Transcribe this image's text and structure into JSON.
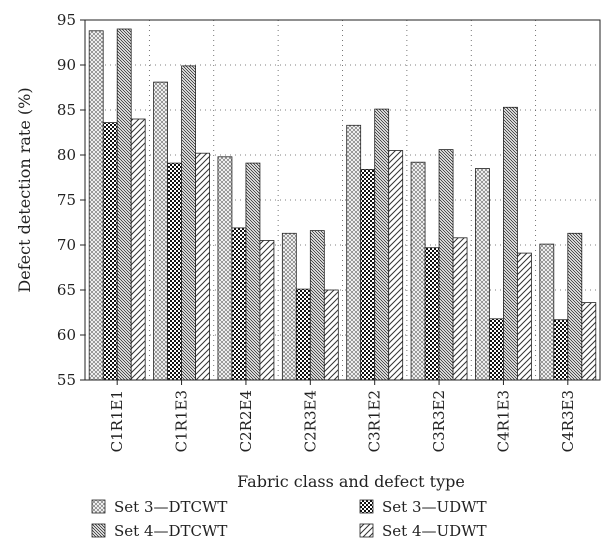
{
  "chart_data": {
    "type": "bar",
    "title": "",
    "xlabel": "Fabric class and defect type",
    "ylabel": "Defect detection rate (%)",
    "ylim": [
      55,
      95
    ],
    "yticks": [
      55,
      60,
      65,
      70,
      75,
      80,
      85,
      90,
      95
    ],
    "grid": true,
    "legend_position": "bottom",
    "categories": [
      "C1R1E1",
      "C1R1E3",
      "C2R2E4",
      "C2R3E4",
      "C3R1E2",
      "C3R3E2",
      "C4R1E3",
      "C4R3E3"
    ],
    "series": [
      {
        "name": "Set 3—DTCWT",
        "pattern": "crosshatch-fine",
        "values": [
          93.8,
          88.1,
          79.8,
          71.3,
          83.3,
          79.2,
          78.5,
          70.1
        ]
      },
      {
        "name": "Set 3—UDWT",
        "pattern": "checker-dark",
        "values": [
          83.6,
          79.1,
          71.9,
          65.1,
          78.4,
          69.7,
          61.8,
          61.7
        ]
      },
      {
        "name": "Set 4—DTCWT",
        "pattern": "diagonal-dense",
        "values": [
          94.0,
          89.9,
          79.1,
          71.6,
          85.1,
          80.6,
          85.3,
          71.3
        ]
      },
      {
        "name": "Set 4—UDWT",
        "pattern": "diagonal-sparse",
        "values": [
          84.0,
          80.2,
          70.5,
          65.0,
          80.5,
          70.8,
          69.1,
          63.6
        ]
      }
    ]
  }
}
